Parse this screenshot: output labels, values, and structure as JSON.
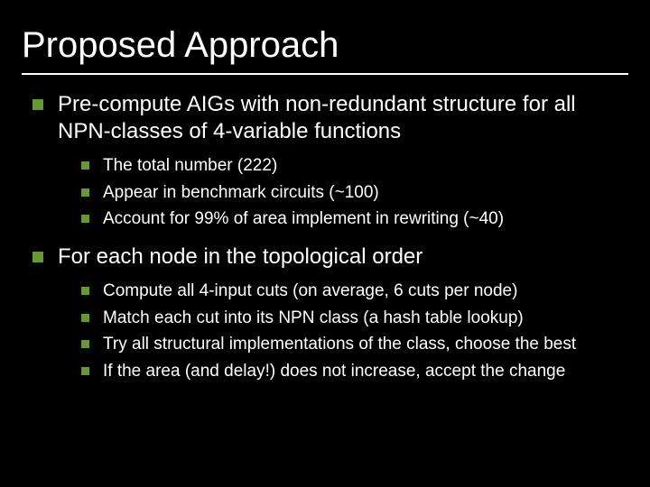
{
  "slide": {
    "title": "Proposed Approach",
    "background_color": "#000000",
    "text_color": "#ffffff",
    "bullet_color": "#669933",
    "title_fontsize": 40,
    "body_fontsize": 24,
    "sub_fontsize": 19,
    "items": [
      {
        "text": "Pre-compute AIGs with non-redundant structure for all NPN-classes of 4-variable functions",
        "sub": [
          "The total number (222)",
          "Appear in benchmark circuits (~100)",
          "Account for 99% of area implement in rewriting (~40)"
        ]
      },
      {
        "text": "For each node in the topological order",
        "sub": [
          "Compute all 4-input cuts (on average, 6 cuts per node)",
          "Match each cut into its NPN class (a hash table lookup)",
          "Try all structural implementations of the class, choose the best",
          "If the area (and delay!) does not increase, accept the change"
        ]
      }
    ]
  }
}
